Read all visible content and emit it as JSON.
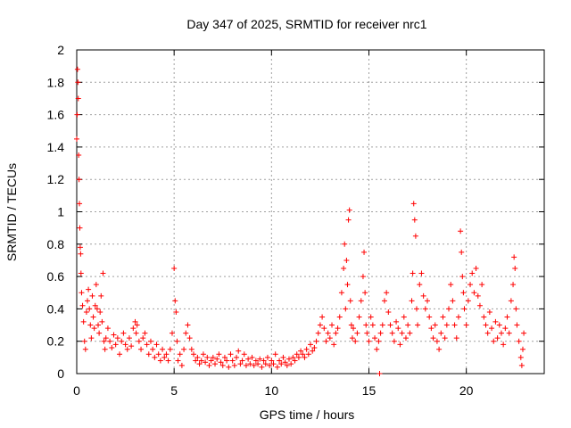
{
  "chart_data": {
    "type": "scatter",
    "title": "Day 347 of 2025, SRMTID for receiver nrc1",
    "xlabel": "GPS time / hours",
    "ylabel": "SRMTID / TECUs",
    "xlim": [
      0,
      24
    ],
    "ylim": [
      0,
      2
    ],
    "xticks": [
      0,
      5,
      10,
      15,
      20
    ],
    "yticks": [
      0,
      0.2,
      0.4,
      0.6,
      0.8,
      1,
      1.2,
      1.4,
      1.6,
      1.8,
      2
    ],
    "xtick_labels": [
      "0",
      "5",
      "10",
      "15",
      "20"
    ],
    "ytick_labels": [
      "0",
      "0.2",
      "0.4",
      "0.6",
      "0.8",
      "1",
      "1.2",
      "1.4",
      "1.6",
      "1.8",
      "2"
    ],
    "grid": true,
    "marker": "+",
    "color": "#ff0000",
    "series": [
      {
        "name": "SRMTID",
        "points": [
          [
            0.0,
            1.45
          ],
          [
            0.02,
            1.6
          ],
          [
            0.04,
            1.88
          ],
          [
            0.06,
            1.8
          ],
          [
            0.08,
            1.7
          ],
          [
            0.1,
            1.35
          ],
          [
            0.12,
            1.2
          ],
          [
            0.14,
            1.05
          ],
          [
            0.16,
            0.9
          ],
          [
            0.18,
            0.78
          ],
          [
            0.2,
            0.74
          ],
          [
            0.22,
            0.62
          ],
          [
            0.25,
            0.5
          ],
          [
            0.3,
            0.42
          ],
          [
            0.35,
            0.32
          ],
          [
            0.4,
            0.2
          ],
          [
            0.45,
            0.15
          ],
          [
            0.5,
            0.38
          ],
          [
            0.55,
            0.45
          ],
          [
            0.6,
            0.52
          ],
          [
            0.65,
            0.4
          ],
          [
            0.7,
            0.3
          ],
          [
            0.75,
            0.22
          ],
          [
            0.8,
            0.48
          ],
          [
            0.85,
            0.35
          ],
          [
            0.9,
            0.28
          ],
          [
            0.95,
            0.42
          ],
          [
            1.0,
            0.55
          ],
          [
            1.05,
            0.4
          ],
          [
            1.1,
            0.3
          ],
          [
            1.15,
            0.25
          ],
          [
            1.2,
            0.38
          ],
          [
            1.25,
            0.48
          ],
          [
            1.3,
            0.32
          ],
          [
            1.35,
            0.62
          ],
          [
            1.4,
            0.2
          ],
          [
            1.45,
            0.15
          ],
          [
            1.5,
            0.22
          ],
          [
            1.6,
            0.28
          ],
          [
            1.7,
            0.2
          ],
          [
            1.8,
            0.16
          ],
          [
            1.9,
            0.24
          ],
          [
            2.0,
            0.18
          ],
          [
            2.1,
            0.22
          ],
          [
            2.2,
            0.12
          ],
          [
            2.3,
            0.2
          ],
          [
            2.4,
            0.25
          ],
          [
            2.5,
            0.18
          ],
          [
            2.6,
            0.15
          ],
          [
            2.7,
            0.22
          ],
          [
            2.8,
            0.17
          ],
          [
            2.9,
            0.28
          ],
          [
            3.0,
            0.32
          ],
          [
            3.05,
            0.25
          ],
          [
            3.1,
            0.3
          ],
          [
            3.2,
            0.2
          ],
          [
            3.3,
            0.15
          ],
          [
            3.4,
            0.22
          ],
          [
            3.5,
            0.25
          ],
          [
            3.6,
            0.18
          ],
          [
            3.7,
            0.12
          ],
          [
            3.8,
            0.2
          ],
          [
            3.9,
            0.15
          ],
          [
            4.0,
            0.1
          ],
          [
            4.1,
            0.18
          ],
          [
            4.2,
            0.12
          ],
          [
            4.3,
            0.08
          ],
          [
            4.4,
            0.15
          ],
          [
            4.5,
            0.1
          ],
          [
            4.6,
            0.12
          ],
          [
            4.7,
            0.08
          ],
          [
            4.8,
            0.15
          ],
          [
            4.9,
            0.25
          ],
          [
            5.0,
            0.65
          ],
          [
            5.05,
            0.45
          ],
          [
            5.1,
            0.38
          ],
          [
            5.15,
            0.2
          ],
          [
            5.2,
            0.08
          ],
          [
            5.3,
            0.12
          ],
          [
            5.4,
            0.05
          ],
          [
            5.5,
            0.15
          ],
          [
            5.6,
            0.25
          ],
          [
            5.7,
            0.3
          ],
          [
            5.8,
            0.22
          ],
          [
            5.9,
            0.15
          ],
          [
            6.0,
            0.12
          ],
          [
            6.1,
            0.08
          ],
          [
            6.2,
            0.1
          ],
          [
            6.3,
            0.06
          ],
          [
            6.4,
            0.08
          ],
          [
            6.5,
            0.12
          ],
          [
            6.6,
            0.07
          ],
          [
            6.7,
            0.1
          ],
          [
            6.8,
            0.05
          ],
          [
            6.9,
            0.08
          ],
          [
            7.0,
            0.1
          ],
          [
            7.1,
            0.06
          ],
          [
            7.2,
            0.09
          ],
          [
            7.3,
            0.12
          ],
          [
            7.4,
            0.07
          ],
          [
            7.5,
            0.05
          ],
          [
            7.6,
            0.1
          ],
          [
            7.7,
            0.08
          ],
          [
            7.8,
            0.04
          ],
          [
            7.9,
            0.12
          ],
          [
            8.0,
            0.08
          ],
          [
            8.1,
            0.05
          ],
          [
            8.2,
            0.1
          ],
          [
            8.3,
            0.14
          ],
          [
            8.4,
            0.06
          ],
          [
            8.5,
            0.08
          ],
          [
            8.6,
            0.12
          ],
          [
            8.7,
            0.05
          ],
          [
            8.8,
            0.09
          ],
          [
            8.9,
            0.06
          ],
          [
            9.0,
            0.1
          ],
          [
            9.1,
            0.05
          ],
          [
            9.2,
            0.08
          ],
          [
            9.3,
            0.06
          ],
          [
            9.4,
            0.09
          ],
          [
            9.5,
            0.04
          ],
          [
            9.6,
            0.08
          ],
          [
            9.7,
            0.06
          ],
          [
            9.8,
            0.1
          ],
          [
            9.9,
            0.05
          ],
          [
            10.0,
            0.08
          ],
          [
            10.1,
            0.06
          ],
          [
            10.2,
            0.12
          ],
          [
            10.3,
            0.04
          ],
          [
            10.4,
            0.08
          ],
          [
            10.5,
            0.06
          ],
          [
            10.6,
            0.1
          ],
          [
            10.7,
            0.07
          ],
          [
            10.8,
            0.05
          ],
          [
            10.9,
            0.09
          ],
          [
            11.0,
            0.06
          ],
          [
            11.1,
            0.1
          ],
          [
            11.2,
            0.08
          ],
          [
            11.3,
            0.12
          ],
          [
            11.4,
            0.1
          ],
          [
            11.5,
            0.14
          ],
          [
            11.6,
            0.12
          ],
          [
            11.7,
            0.1
          ],
          [
            11.8,
            0.15
          ],
          [
            11.9,
            0.12
          ],
          [
            12.0,
            0.18
          ],
          [
            12.1,
            0.14
          ],
          [
            12.2,
            0.16
          ],
          [
            12.3,
            0.2
          ],
          [
            12.4,
            0.25
          ],
          [
            12.5,
            0.3
          ],
          [
            12.6,
            0.35
          ],
          [
            12.7,
            0.28
          ],
          [
            12.8,
            0.2
          ],
          [
            12.9,
            0.25
          ],
          [
            13.0,
            0.22
          ],
          [
            13.1,
            0.3
          ],
          [
            13.2,
            0.18
          ],
          [
            13.3,
            0.25
          ],
          [
            13.4,
            0.28
          ],
          [
            13.5,
            0.35
          ],
          [
            13.6,
            0.5
          ],
          [
            13.7,
            0.65
          ],
          [
            13.75,
            0.8
          ],
          [
            13.8,
            0.4
          ],
          [
            13.85,
            0.7
          ],
          [
            13.9,
            0.55
          ],
          [
            13.95,
            0.95
          ],
          [
            14.0,
            1.01
          ],
          [
            14.05,
            0.45
          ],
          [
            14.1,
            0.3
          ],
          [
            14.15,
            0.22
          ],
          [
            14.2,
            0.28
          ],
          [
            14.3,
            0.2
          ],
          [
            14.4,
            0.25
          ],
          [
            14.5,
            0.35
          ],
          [
            14.6,
            0.45
          ],
          [
            14.7,
            0.6
          ],
          [
            14.75,
            0.75
          ],
          [
            14.8,
            0.5
          ],
          [
            14.85,
            0.3
          ],
          [
            14.9,
            0.25
          ],
          [
            15.0,
            0.2
          ],
          [
            15.1,
            0.35
          ],
          [
            15.2,
            0.3
          ],
          [
            15.3,
            0.22
          ],
          [
            15.4,
            0.15
          ],
          [
            15.5,
            0.2
          ],
          [
            15.55,
            0.0
          ],
          [
            15.6,
            0.25
          ],
          [
            15.7,
            0.3
          ],
          [
            15.8,
            0.45
          ],
          [
            15.9,
            0.5
          ],
          [
            16.0,
            0.38
          ],
          [
            16.1,
            0.3
          ],
          [
            16.2,
            0.25
          ],
          [
            16.3,
            0.2
          ],
          [
            16.4,
            0.32
          ],
          [
            16.5,
            0.28
          ],
          [
            16.6,
            0.18
          ],
          [
            16.7,
            0.25
          ],
          [
            16.8,
            0.35
          ],
          [
            16.9,
            0.22
          ],
          [
            17.0,
            0.3
          ],
          [
            17.1,
            0.25
          ],
          [
            17.2,
            0.45
          ],
          [
            17.25,
            0.62
          ],
          [
            17.3,
            1.05
          ],
          [
            17.35,
            0.95
          ],
          [
            17.4,
            0.85
          ],
          [
            17.45,
            0.4
          ],
          [
            17.5,
            0.3
          ],
          [
            17.6,
            0.55
          ],
          [
            17.7,
            0.62
          ],
          [
            17.8,
            0.48
          ],
          [
            17.9,
            0.4
          ],
          [
            18.0,
            0.45
          ],
          [
            18.1,
            0.35
          ],
          [
            18.2,
            0.28
          ],
          [
            18.3,
            0.22
          ],
          [
            18.4,
            0.3
          ],
          [
            18.5,
            0.2
          ],
          [
            18.6,
            0.15
          ],
          [
            18.7,
            0.25
          ],
          [
            18.8,
            0.35
          ],
          [
            18.9,
            0.22
          ],
          [
            19.0,
            0.3
          ],
          [
            19.1,
            0.4
          ],
          [
            19.2,
            0.55
          ],
          [
            19.3,
            0.45
          ],
          [
            19.4,
            0.3
          ],
          [
            19.5,
            0.22
          ],
          [
            19.6,
            0.35
          ],
          [
            19.7,
            0.88
          ],
          [
            19.75,
            0.75
          ],
          [
            19.8,
            0.6
          ],
          [
            19.85,
            0.5
          ],
          [
            19.9,
            0.4
          ],
          [
            20.0,
            0.3
          ],
          [
            20.1,
            0.45
          ],
          [
            20.2,
            0.55
          ],
          [
            20.3,
            0.62
          ],
          [
            20.4,
            0.5
          ],
          [
            20.5,
            0.65
          ],
          [
            20.6,
            0.48
          ],
          [
            20.7,
            0.42
          ],
          [
            20.8,
            0.55
          ],
          [
            20.9,
            0.35
          ],
          [
            21.0,
            0.3
          ],
          [
            21.1,
            0.25
          ],
          [
            21.2,
            0.38
          ],
          [
            21.3,
            0.28
          ],
          [
            21.4,
            0.2
          ],
          [
            21.5,
            0.32
          ],
          [
            21.6,
            0.22
          ],
          [
            21.7,
            0.3
          ],
          [
            21.8,
            0.25
          ],
          [
            21.9,
            0.18
          ],
          [
            22.0,
            0.28
          ],
          [
            22.1,
            0.35
          ],
          [
            22.2,
            0.25
          ],
          [
            22.3,
            0.45
          ],
          [
            22.4,
            0.55
          ],
          [
            22.45,
            0.72
          ],
          [
            22.5,
            0.65
          ],
          [
            22.55,
            0.4
          ],
          [
            22.6,
            0.3
          ],
          [
            22.7,
            0.2
          ],
          [
            22.8,
            0.1
          ],
          [
            22.85,
            0.05
          ],
          [
            22.9,
            0.15
          ],
          [
            22.95,
            0.25
          ]
        ]
      }
    ]
  }
}
